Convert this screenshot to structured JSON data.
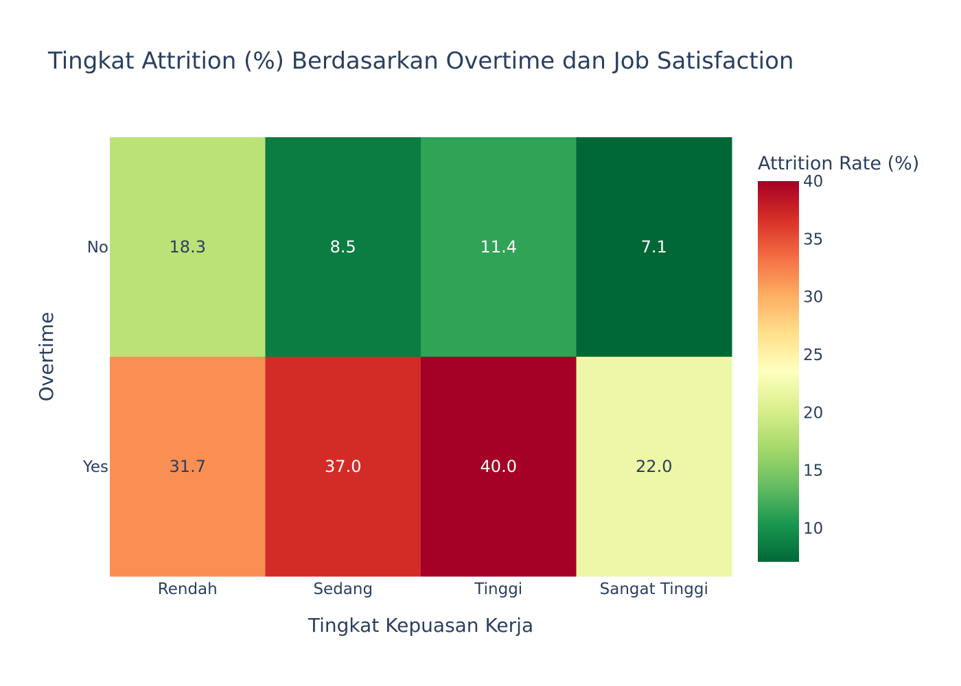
{
  "chart_data": {
    "type": "heatmap",
    "title": "Tingkat Attrition (%) Berdasarkan Overtime dan Job Satisfaction",
    "xlabel": "Tingkat Kepuasan Kerja",
    "ylabel": "Overtime",
    "x_categories": [
      "Rendah",
      "Sedang",
      "Tinggi",
      "Sangat Tinggi"
    ],
    "y_categories": [
      "No",
      "Yes"
    ],
    "values": [
      [
        18.3,
        8.5,
        11.4,
        7.1
      ],
      [
        31.7,
        37.0,
        40.0,
        22.0
      ]
    ],
    "value_labels": [
      [
        "18.3",
        "8.5",
        "11.4",
        "7.1"
      ],
      [
        "31.7",
        "37.0",
        "40.0",
        "22.0"
      ]
    ],
    "colorscale": "RdYlGn_r",
    "colorbar": {
      "title": "Attrition Rate (%)",
      "zmin": 7.1,
      "zmax": 40.0,
      "ticks": [
        10,
        15,
        20,
        25,
        30,
        35,
        40
      ]
    }
  },
  "colors": {
    "text": "#2a3f5f",
    "background": "#ffffff"
  }
}
